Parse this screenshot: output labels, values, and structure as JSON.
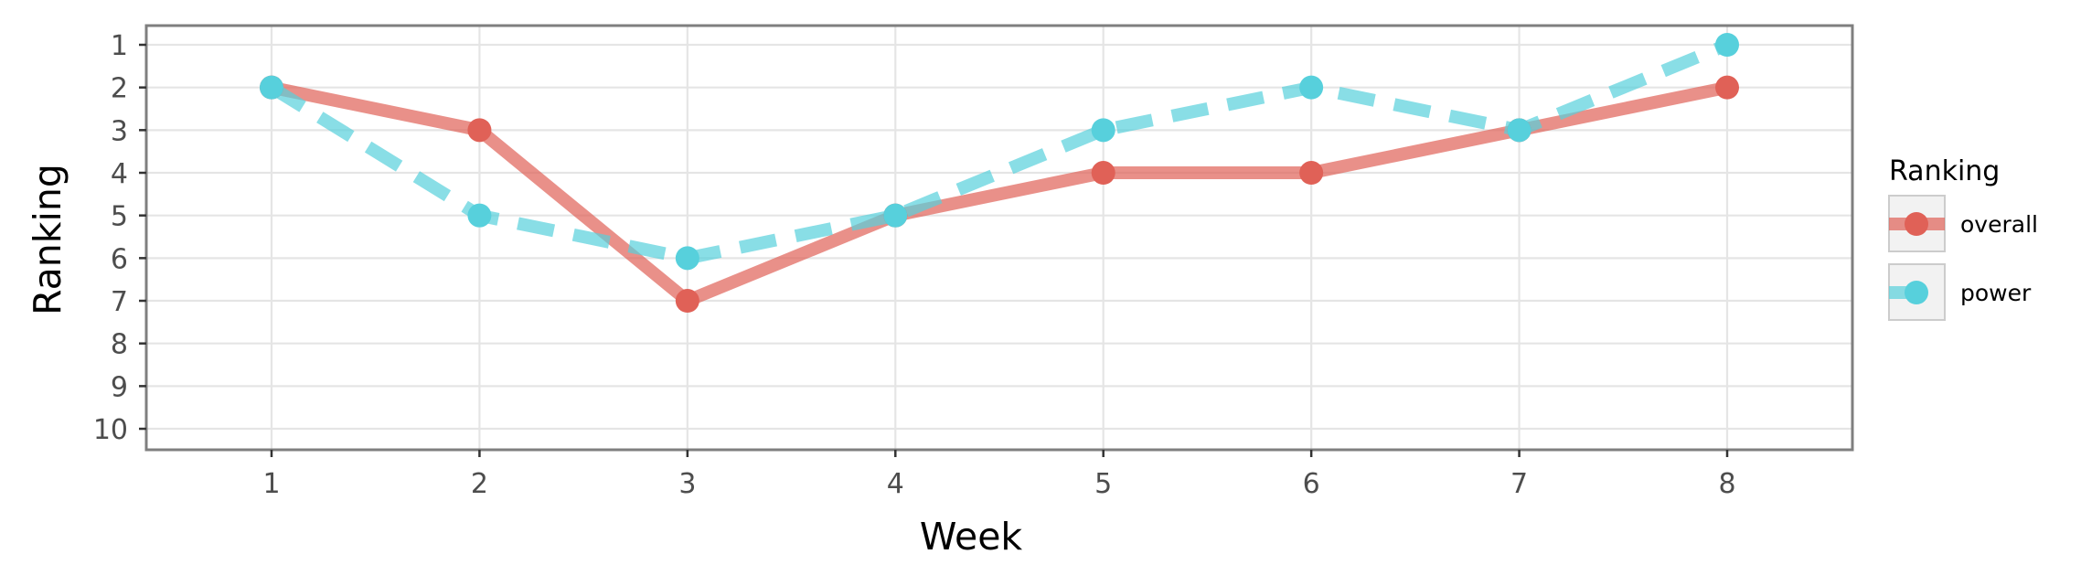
{
  "chart_data": {
    "type": "line",
    "xlabel": "Week",
    "ylabel": "Ranking",
    "x": [
      1,
      2,
      3,
      4,
      5,
      6,
      7,
      8
    ],
    "x_ticks": [
      "1",
      "2",
      "3",
      "4",
      "5",
      "6",
      "7",
      "8"
    ],
    "y_ticks": [
      "1",
      "2",
      "3",
      "4",
      "5",
      "6",
      "7",
      "8",
      "9",
      "10"
    ],
    "ylim": [
      1,
      10
    ],
    "y_reversed": true,
    "grid": true,
    "legend": {
      "title": "Ranking",
      "position": "right"
    },
    "series": [
      {
        "name": "overall",
        "values": [
          2,
          3,
          7,
          5,
          4,
          4,
          3,
          2
        ],
        "color": "#e06157",
        "line_style": "solid"
      },
      {
        "name": "power",
        "values": [
          2,
          5,
          6,
          5,
          3,
          2,
          3,
          1
        ],
        "color": "#57d0dc",
        "line_style": "dashed"
      }
    ]
  }
}
